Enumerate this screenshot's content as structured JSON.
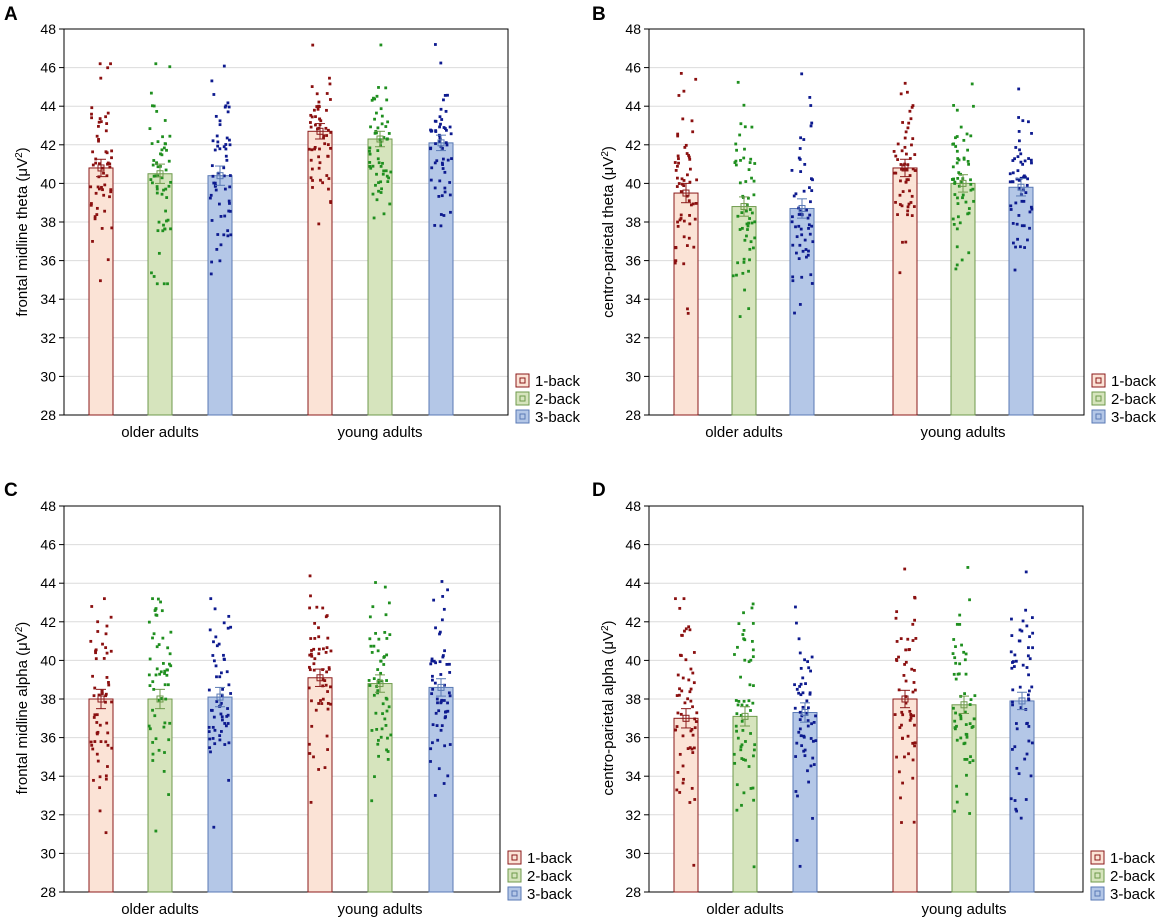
{
  "colors": {
    "one_back_fill": "#fbe3d6",
    "one_back_edge": "#8b1a1a",
    "one_back_dot": "#8b1010",
    "two_back_fill": "#d6e4bd",
    "two_back_edge": "#6f9a4c",
    "two_back_dot": "#1f8f1f",
    "three_back_fill": "#b4c7e7",
    "three_back_edge": "#5a7ab5",
    "three_back_dot": "#0d1a8f",
    "grid": "#dcdcdc",
    "axis": "#000000"
  },
  "chart_data": [
    {
      "panel": "A",
      "type": "bar",
      "ylabel_main": "frontal midline theta (μV",
      "ylabel_sup": "2",
      "ylabel_end": ")",
      "ylim": [
        28,
        48
      ],
      "yticks": [
        "28",
        "30",
        "32",
        "34",
        "36",
        "38",
        "40",
        "42",
        "44",
        "46",
        "48"
      ],
      "grid": true,
      "legend_position": "bottom-right",
      "categories": [
        "older adults",
        "young adults"
      ],
      "series": [
        {
          "name": "1-back",
          "values": [
            40.8,
            42.7
          ],
          "error": [
            0.45,
            0.4
          ]
        },
        {
          "name": "2-back",
          "values": [
            40.5,
            42.3
          ],
          "error": [
            0.5,
            0.4
          ]
        },
        {
          "name": "3-back",
          "values": [
            40.4,
            42.1
          ],
          "error": [
            0.5,
            0.4
          ]
        }
      ],
      "points": {
        "older": {
          "min": 34.8,
          "max": 46.2
        },
        "young": {
          "min": 37.8,
          "max": 47.6
        }
      }
    },
    {
      "panel": "B",
      "type": "bar",
      "ylabel_main": "centro-parietal theta (μV",
      "ylabel_sup": "2",
      "ylabel_end": ")",
      "ylim": [
        28,
        48
      ],
      "yticks": [
        "28",
        "30",
        "32",
        "34",
        "36",
        "38",
        "40",
        "42",
        "44",
        "46",
        "48"
      ],
      "grid": true,
      "legend_position": "bottom-right",
      "categories": [
        "older adults",
        "young adults"
      ],
      "series": [
        {
          "name": "1-back",
          "values": [
            39.5,
            40.8
          ],
          "error": [
            0.5,
            0.45
          ]
        },
        {
          "name": "2-back",
          "values": [
            38.8,
            40.0
          ],
          "error": [
            0.5,
            0.45
          ]
        },
        {
          "name": "3-back",
          "values": [
            38.7,
            39.8
          ],
          "error": [
            0.5,
            0.45
          ]
        }
      ],
      "points": {
        "older": {
          "min": 33.1,
          "max": 45.7
        },
        "young": {
          "min": 35.3,
          "max": 45.3
        }
      }
    },
    {
      "panel": "C",
      "type": "bar",
      "ylabel_main": "frontal midline alpha (μV",
      "ylabel_sup": "2",
      "ylabel_end": ")",
      "ylim": [
        28,
        48
      ],
      "yticks": [
        "28",
        "30",
        "32",
        "34",
        "36",
        "38",
        "40",
        "42",
        "44",
        "46",
        "48"
      ],
      "grid": true,
      "legend_position": "bottom-right",
      "categories": [
        "older adults",
        "young adults"
      ],
      "series": [
        {
          "name": "1-back",
          "values": [
            38.0,
            39.1
          ],
          "error": [
            0.5,
            0.45
          ]
        },
        {
          "name": "2-back",
          "values": [
            38.0,
            38.8
          ],
          "error": [
            0.5,
            0.45
          ]
        },
        {
          "name": "3-back",
          "values": [
            38.1,
            38.6
          ],
          "error": [
            0.5,
            0.45
          ]
        }
      ],
      "points": {
        "older": {
          "min": 30.9,
          "max": 43.2
        },
        "young": {
          "min": 32.6,
          "max": 44.5
        }
      }
    },
    {
      "panel": "D",
      "type": "bar",
      "ylabel_main": "centro-parietal alpha (μV",
      "ylabel_sup": "2",
      "ylabel_end": ")",
      "ylim": [
        28,
        48
      ],
      "yticks": [
        "28",
        "30",
        "32",
        "34",
        "36",
        "38",
        "40",
        "42",
        "44",
        "46",
        "48"
      ],
      "grid": true,
      "legend_position": "bottom-right",
      "categories": [
        "older adults",
        "young adults"
      ],
      "series": [
        {
          "name": "1-back",
          "values": [
            37.0,
            38.0
          ],
          "error": [
            0.5,
            0.45
          ]
        },
        {
          "name": "2-back",
          "values": [
            37.1,
            37.7
          ],
          "error": [
            0.5,
            0.45
          ]
        },
        {
          "name": "3-back",
          "values": [
            37.3,
            37.9
          ],
          "error": [
            0.5,
            0.45
          ]
        }
      ],
      "points": {
        "older": {
          "min": 29.2,
          "max": 43.2
        },
        "young": {
          "min": 31.6,
          "max": 45.0
        }
      }
    }
  ]
}
